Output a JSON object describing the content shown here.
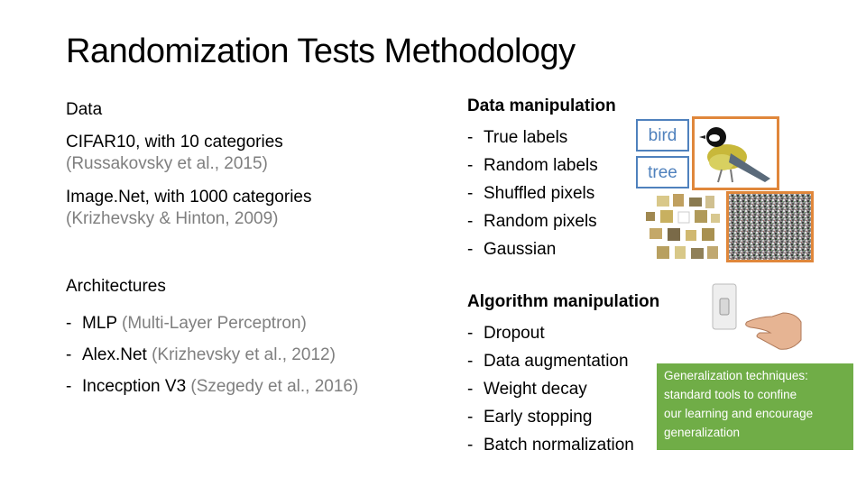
{
  "title": "Randomization Tests Methodology",
  "data_section": {
    "heading": "Data",
    "items": [
      {
        "main": "CIFAR10, with 10 categories",
        "cite": "(Russakovsky et al., 2015)"
      },
      {
        "main": "Image.Net, with 1000 categories",
        "cite": "(Krizhevsky & Hinton, 2009)"
      }
    ]
  },
  "arch_section": {
    "heading": "Architectures",
    "items": [
      {
        "main": "MLP",
        "cite": "(Multi-Layer Perceptron)"
      },
      {
        "main": "Alex.Net",
        "cite": "(Krizhevsky et al., 2012)"
      },
      {
        "main": "Incecption V3",
        "cite": "(Szegedy et al., 2016)"
      }
    ]
  },
  "data_manip": {
    "heading": "Data manipulation",
    "items": [
      "True labels",
      "Random labels",
      "Shuffled pixels",
      "Random pixels",
      "Gaussian"
    ]
  },
  "algo_manip": {
    "heading": "Algorithm manipulation",
    "items": [
      "Dropout",
      "Data augmentation",
      "Weight decay",
      "Early stopping",
      "Batch normalization"
    ]
  },
  "labels": {
    "bird": "bird",
    "tree": "tree"
  },
  "callout": {
    "lines": [
      "Generalization techniques:",
      "standard tools to confine",
      "our learning and encourage",
      "generalization"
    ]
  },
  "colors": {
    "accent_blue": "#4f81bd",
    "photo_border": "#e0873b",
    "callout_green": "#70ad47",
    "citation_gray": "#7f7f7f"
  }
}
